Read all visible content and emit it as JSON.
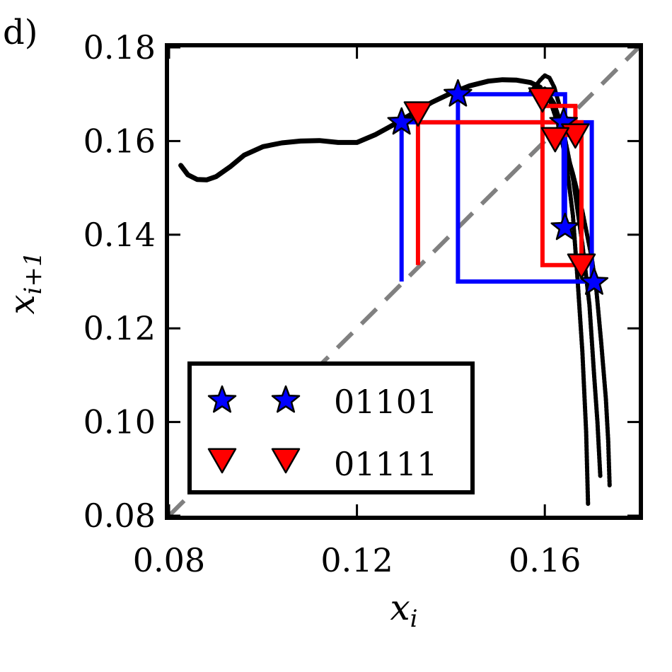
{
  "panel_label": "d)",
  "chart_data": {
    "type": "scatter",
    "xlabel": "x_i",
    "ylabel": "x_{i+1}",
    "xlim": [
      0.08,
      0.18
    ],
    "ylim": [
      0.08,
      0.18
    ],
    "x_ticks": [
      0.08,
      0.12,
      0.16
    ],
    "x_tick_labels": [
      "0.08",
      "0.12",
      "0.16"
    ],
    "y_ticks": [
      0.08,
      0.1,
      0.12,
      0.14,
      0.16,
      0.18
    ],
    "y_tick_labels": [
      "0.08",
      "0.10",
      "0.12",
      "0.14",
      "0.16",
      "0.18"
    ],
    "grid": false,
    "legend_position": "lower-left",
    "diagonal": {
      "color": "#808080",
      "style": "dashed"
    },
    "return_map_points": {
      "color": "#000000",
      "branches": [
        {
          "x": [
            0.0825,
            0.084,
            0.086,
            0.088,
            0.09,
            0.093,
            0.096,
            0.1,
            0.104,
            0.108,
            0.112,
            0.116,
            0.12,
            0.124,
            0.128,
            0.132,
            0.136,
            0.14,
            0.144,
            0.148,
            0.151,
            0.154,
            0.157,
            0.159
          ],
          "y": [
            0.1548,
            0.1528,
            0.1518,
            0.1517,
            0.1524,
            0.1545,
            0.157,
            0.1588,
            0.1596,
            0.16,
            0.1601,
            0.1597,
            0.1597,
            0.1614,
            0.1636,
            0.166,
            0.1683,
            0.1702,
            0.1718,
            0.1728,
            0.1731,
            0.173,
            0.1725,
            0.1715
          ]
        },
        {
          "x": [
            0.159,
            0.161,
            0.163,
            0.1645,
            0.166,
            0.167,
            0.168,
            0.1688,
            0.1692
          ],
          "y": [
            0.1715,
            0.169,
            0.163,
            0.156,
            0.144,
            0.13,
            0.115,
            0.098,
            0.0825
          ]
        },
        {
          "x": [
            0.16,
            0.162,
            0.164,
            0.166,
            0.168,
            0.1695,
            0.1705,
            0.1712,
            0.1718
          ],
          "y": [
            0.1712,
            0.168,
            0.162,
            0.152,
            0.138,
            0.125,
            0.11,
            0.1,
            0.0885
          ]
        },
        {
          "x": [
            0.157,
            0.159,
            0.16,
            0.161,
            0.162,
            0.163
          ],
          "y": [
            0.1705,
            0.173,
            0.174,
            0.1735,
            0.1715,
            0.168
          ]
        },
        {
          "x": [
            0.164,
            0.166,
            0.168,
            0.17,
            0.171,
            0.172,
            0.173,
            0.1735,
            0.1738
          ],
          "y": [
            0.16,
            0.153,
            0.145,
            0.135,
            0.128,
            0.117,
            0.105,
            0.096,
            0.0865
          ]
        }
      ]
    },
    "series": [
      {
        "name": "01101",
        "color": "#0000ff",
        "marker": "star",
        "x": [
          0.1295,
          0.1415,
          0.1705,
          0.1643,
          0.164
        ],
        "y": [
          0.164,
          0.17,
          0.1298,
          0.1415,
          0.164
        ],
        "cobweb_x": [
          0.1295,
          0.1295,
          0.17,
          0.17,
          0.1415,
          0.1415,
          0.1643,
          0.1643,
          0.164,
          0.164
        ],
        "cobweb_y": [
          0.13,
          0.164,
          0.164,
          0.13,
          0.13,
          0.17,
          0.17,
          0.1415,
          0.1415,
          0.164
        ]
      },
      {
        "name": "01111",
        "color": "#ff0000",
        "marker": "triangle-down",
        "x": [
          0.133,
          0.1595,
          0.1665,
          0.1678,
          0.1622
        ],
        "y": [
          0.166,
          0.169,
          0.1613,
          0.1335,
          0.1605
        ],
        "cobweb_x": [
          0.133,
          0.133,
          0.1678,
          0.1678,
          0.1595,
          0.1595,
          0.1665,
          0.1665,
          0.1622,
          0.1622
        ],
        "cobweb_y": [
          0.1335,
          0.164,
          0.164,
          0.1335,
          0.1335,
          0.1675,
          0.1675,
          0.1613,
          0.1613,
          0.1605
        ]
      }
    ]
  }
}
